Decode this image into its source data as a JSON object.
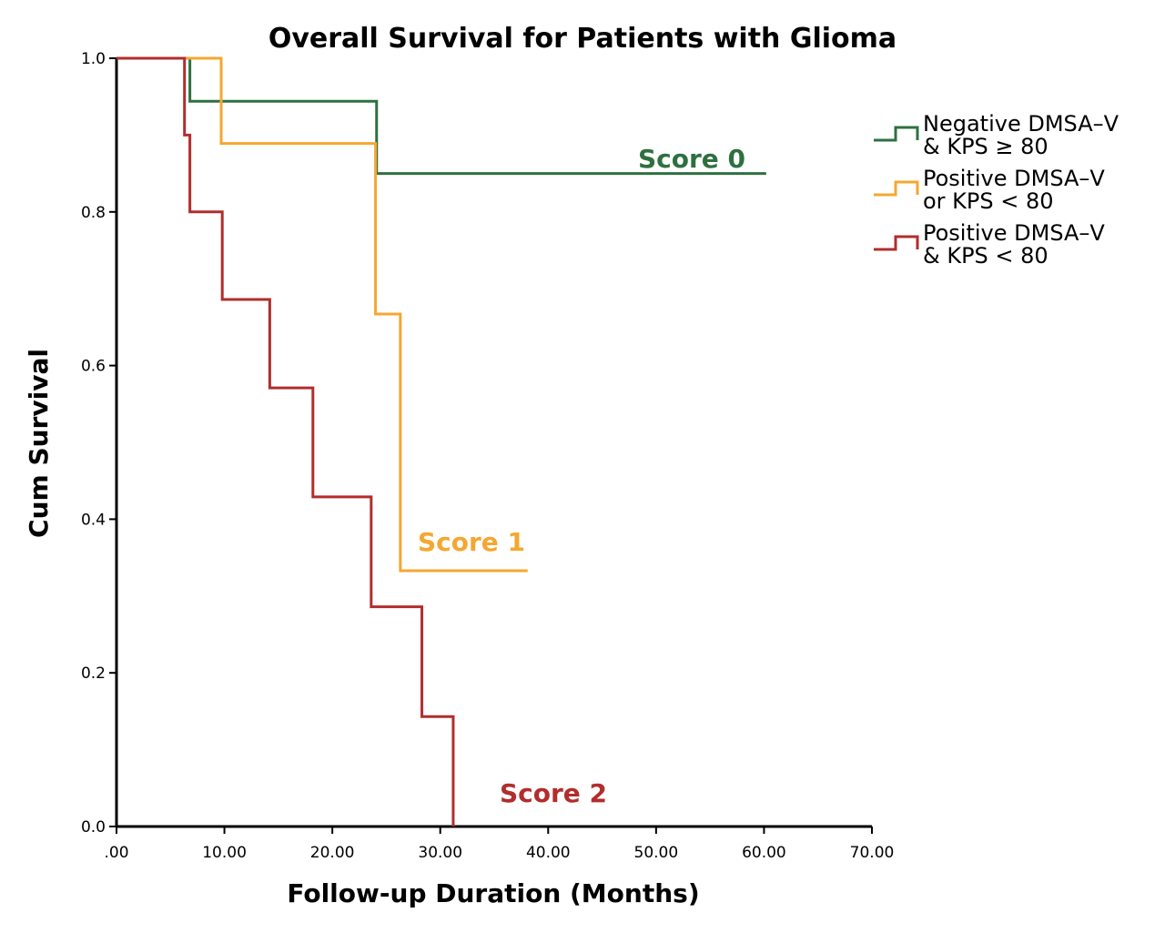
{
  "chart_data": {
    "type": "line",
    "title": "Overall Survival for Patients with Glioma",
    "xlabel": "Follow-up Duration (Months)",
    "ylabel": "Cum Survival",
    "xlim": [
      0,
      70
    ],
    "ylim": [
      0,
      1
    ],
    "x_ticks": [
      ".00",
      "10.00",
      "20.00",
      "30.00",
      "40.00",
      "50.00",
      "60.00",
      "70.00"
    ],
    "y_ticks": [
      "0.0",
      "0.2",
      "0.4",
      "0.6",
      "0.8",
      "1.0"
    ],
    "grid": false,
    "legend_position": "top-right",
    "series": [
      {
        "name": "Negative DMSA-V & KPS ≥ 80",
        "legend_lines": [
          "Negative DMSA–V",
          "& KPS ≥ 80"
        ],
        "color": "#2e7040",
        "annotation": "Score 0",
        "steps": [
          [
            0,
            1.0
          ],
          [
            6.8,
            0.944
          ],
          [
            24.1,
            0.85
          ]
        ],
        "end_x": 60.2
      },
      {
        "name": "Positive DMSA-V or KPS < 80",
        "legend_lines": [
          "Positive DMSA–V",
          "or KPS < 80"
        ],
        "color": "#f5a731",
        "annotation": "Score 1",
        "steps": [
          [
            0,
            1.0
          ],
          [
            9.7,
            0.889
          ],
          [
            24.0,
            0.667
          ],
          [
            26.3,
            0.333
          ]
        ],
        "end_x": 38.1
      },
      {
        "name": "Positive DMSA-V & KPS < 80",
        "legend_lines": [
          "Positive DMSA–V",
          "& KPS < 80"
        ],
        "color": "#b22d2d",
        "annotation": "Score 2",
        "steps": [
          [
            0,
            1.0
          ],
          [
            6.3,
            0.9
          ],
          [
            6.8,
            0.8
          ],
          [
            9.8,
            0.686
          ],
          [
            14.2,
            0.571
          ],
          [
            18.2,
            0.429
          ],
          [
            23.6,
            0.286
          ],
          [
            28.3,
            0.143
          ],
          [
            31.2,
            0.0
          ]
        ],
        "end_x": 31.2
      }
    ]
  }
}
